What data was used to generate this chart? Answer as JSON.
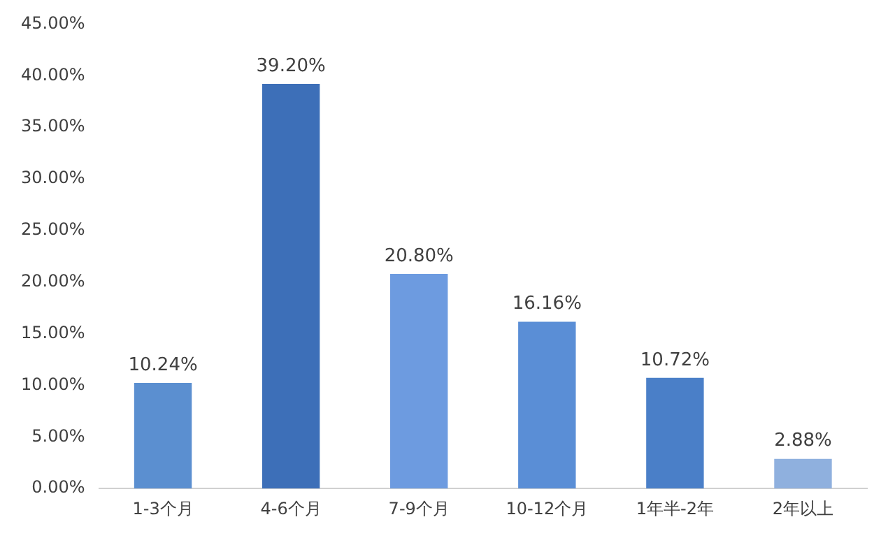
{
  "chart_data": {
    "type": "bar",
    "categories": [
      "1-3个月",
      "4-6个月",
      "7-9个月",
      "10-12个月",
      "1年半-2年",
      "2年以上"
    ],
    "values": [
      10.24,
      39.2,
      20.8,
      16.16,
      10.72,
      2.88
    ],
    "colors": [
      "#5b8fd0",
      "#3d6fb8",
      "#6d9be0",
      "#5a8ed6",
      "#4a7fc8",
      "#8fb0de"
    ],
    "value_labels": [
      "10.24%",
      "39.20%",
      "20.80%",
      "16.16%",
      "10.72%",
      "2.88%"
    ],
    "ylim": [
      0,
      45
    ],
    "yticks": [
      {
        "value": 0,
        "label": "0.00%"
      },
      {
        "value": 5,
        "label": "5.00%"
      },
      {
        "value": 10,
        "label": "10.00%"
      },
      {
        "value": 15,
        "label": "15.00%"
      },
      {
        "value": 20,
        "label": "20.00%"
      },
      {
        "value": 25,
        "label": "25.00%"
      },
      {
        "value": 30,
        "label": "30.00%"
      },
      {
        "value": 35,
        "label": "35.00%"
      },
      {
        "value": 40,
        "label": "40.00%"
      },
      {
        "value": 45,
        "label": "45.00%"
      }
    ],
    "grid": false,
    "legend": false
  }
}
